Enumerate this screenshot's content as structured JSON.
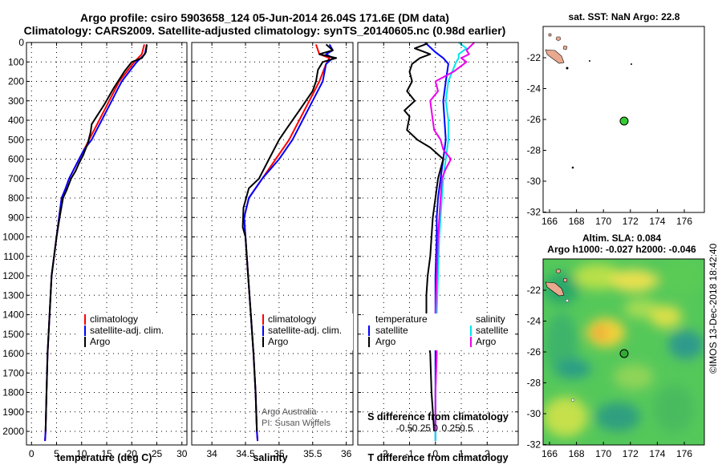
{
  "title_line1": "Argo profile: csiro 5903658_124 05-Jun-2014 26.04S 171.6E (DM data)",
  "title_line2": "Climatology: CARS2009. Satellite-adjusted climatology: synTS_20140605.nc (0.98d earlier)",
  "colors": {
    "climatology": "#ff0000",
    "satellite": "#0000ff",
    "argo": "#000000",
    "sat_salinity": "#00e5ee",
    "argo_salinity": "#ee00ee",
    "pos_marker": "#33cc33"
  },
  "chart_data": [
    {
      "type": "line",
      "xlabel": "temperature (deg C)",
      "xlim": [
        -1,
        31
      ],
      "xticks": [
        0,
        5,
        10,
        15,
        20,
        25,
        30
      ],
      "ylim": [
        2070,
        0
      ],
      "yticks": [
        0,
        100,
        200,
        300,
        400,
        500,
        600,
        700,
        800,
        900,
        1000,
        1100,
        1200,
        1300,
        1400,
        1500,
        1600,
        1700,
        1800,
        1900,
        2000
      ],
      "legend": {
        "climatology": "climatology",
        "satellite": "satellite-adj. clim.",
        "argo": "Argo"
      },
      "series": [
        {
          "name": "climatology",
          "color": "#ff0000",
          "points": [
            [
              22.5,
              10
            ],
            [
              22.0,
              60
            ],
            [
              20.5,
              100
            ],
            [
              19.0,
              150
            ],
            [
              17.5,
              200
            ],
            [
              16.5,
              250
            ],
            [
              15.5,
              300
            ],
            [
              14.5,
              350
            ],
            [
              13.5,
              400
            ],
            [
              12.5,
              450
            ],
            [
              11.5,
              500
            ],
            [
              10.5,
              550
            ],
            [
              9.5,
              600
            ],
            [
              8.5,
              650
            ],
            [
              7.5,
              700
            ],
            [
              6.8,
              750
            ],
            [
              6.0,
              800
            ],
            [
              5.5,
              900
            ],
            [
              5.0,
              1000
            ],
            [
              4.5,
              1100
            ],
            [
              4.0,
              1200
            ],
            [
              3.6,
              1400
            ],
            [
              3.2,
              1600
            ],
            [
              3.0,
              1800
            ],
            [
              2.8,
              2000
            ],
            [
              2.7,
              2050
            ]
          ]
        },
        {
          "name": "satellite",
          "color": "#0000ff",
          "points": [
            [
              23.0,
              10
            ],
            [
              22.6,
              60
            ],
            [
              21.0,
              100
            ],
            [
              19.5,
              150
            ],
            [
              18.0,
              200
            ],
            [
              17.0,
              250
            ],
            [
              16.0,
              300
            ],
            [
              15.0,
              350
            ],
            [
              14.0,
              400
            ],
            [
              13.0,
              450
            ],
            [
              12.0,
              500
            ],
            [
              10.5,
              550
            ],
            [
              9.5,
              600
            ],
            [
              8.5,
              650
            ],
            [
              7.5,
              700
            ],
            [
              6.8,
              750
            ],
            [
              6.0,
              800
            ],
            [
              5.5,
              900
            ],
            [
              5.0,
              1000
            ],
            [
              4.5,
              1100
            ],
            [
              4.0,
              1200
            ],
            [
              3.6,
              1400
            ],
            [
              3.2,
              1600
            ],
            [
              3.0,
              1800
            ],
            [
              2.8,
              2000
            ],
            [
              2.7,
              2050
            ]
          ]
        },
        {
          "name": "argo",
          "color": "#000000",
          "points": [
            [
              23.0,
              10
            ],
            [
              22.8,
              50
            ],
            [
              22.0,
              80
            ],
            [
              20.0,
              100
            ],
            [
              18.5,
              150
            ],
            [
              16.5,
              230
            ],
            [
              14.5,
              320
            ],
            [
              13.0,
              380
            ],
            [
              12.0,
              420
            ],
            [
              11.8,
              460
            ],
            [
              11.2,
              520
            ],
            [
              10.3,
              580
            ],
            [
              9.5,
              620
            ],
            [
              8.8,
              660
            ],
            [
              7.9,
              700
            ],
            [
              7.0,
              760
            ],
            [
              6.3,
              800
            ],
            [
              5.6,
              900
            ],
            [
              5.0,
              1000
            ],
            [
              4.5,
              1100
            ],
            [
              4.0,
              1200
            ],
            [
              3.6,
              1400
            ],
            [
              3.2,
              1600
            ],
            [
              3.0,
              1800
            ],
            [
              2.8,
              2000
            ]
          ]
        }
      ]
    },
    {
      "type": "line",
      "xlabel": "salinity",
      "xlim": [
        33.7,
        36.1
      ],
      "xticks": [
        34,
        34.5,
        35,
        35.5,
        36
      ],
      "xticklabels": [
        "34",
        "34.5",
        "35",
        "35.5",
        "36"
      ],
      "ylim": [
        2070,
        0
      ],
      "legend": {
        "climatology": "climatology",
        "satellite": "satellite-adj. clim.",
        "argo": "Argo"
      },
      "note_line1": "Argo Australia",
      "note_line2": "PI: Susan Wijffels",
      "series": [
        {
          "name": "climatology",
          "color": "#ff0000",
          "points": [
            [
              35.55,
              10
            ],
            [
              35.6,
              60
            ],
            [
              35.75,
              80
            ],
            [
              35.7,
              110
            ],
            [
              35.6,
              200
            ],
            [
              35.45,
              300
            ],
            [
              35.3,
              400
            ],
            [
              35.15,
              500
            ],
            [
              34.95,
              600
            ],
            [
              34.75,
              700
            ],
            [
              34.55,
              800
            ],
            [
              34.48,
              900
            ],
            [
              34.5,
              1000
            ],
            [
              34.54,
              1200
            ],
            [
              34.58,
              1400
            ],
            [
              34.62,
              1600
            ],
            [
              34.65,
              1800
            ],
            [
              34.67,
              2000
            ],
            [
              34.68,
              2050
            ]
          ]
        },
        {
          "name": "satellite",
          "color": "#0000ff",
          "points": [
            [
              35.75,
              10
            ],
            [
              35.8,
              40
            ],
            [
              35.7,
              60
            ],
            [
              35.8,
              80
            ],
            [
              35.7,
              110
            ],
            [
              35.65,
              200
            ],
            [
              35.5,
              300
            ],
            [
              35.35,
              400
            ],
            [
              35.2,
              500
            ],
            [
              35.0,
              600
            ],
            [
              34.75,
              700
            ],
            [
              34.55,
              800
            ],
            [
              34.48,
              900
            ],
            [
              34.5,
              1000
            ],
            [
              34.54,
              1200
            ],
            [
              34.58,
              1400
            ],
            [
              34.62,
              1600
            ],
            [
              34.65,
              1800
            ],
            [
              34.67,
              2000
            ],
            [
              34.68,
              2050
            ]
          ]
        },
        {
          "name": "argo",
          "color": "#000000",
          "points": [
            [
              35.7,
              10
            ],
            [
              35.8,
              40
            ],
            [
              35.6,
              60
            ],
            [
              35.85,
              80
            ],
            [
              35.65,
              100
            ],
            [
              35.58,
              140
            ],
            [
              35.55,
              200
            ],
            [
              35.5,
              250
            ],
            [
              35.3,
              350
            ],
            [
              35.1,
              450
            ],
            [
              35.0,
              500
            ],
            [
              34.85,
              600
            ],
            [
              34.7,
              700
            ],
            [
              34.55,
              750
            ],
            [
              34.47,
              850
            ],
            [
              34.46,
              950
            ],
            [
              34.5,
              1000
            ],
            [
              34.54,
              1200
            ],
            [
              34.58,
              1400
            ],
            [
              34.62,
              1600
            ],
            [
              34.65,
              1800
            ],
            [
              34.67,
              2000
            ]
          ]
        }
      ]
    },
    {
      "type": "line",
      "xlabel": "T difference from climatology",
      "sublabel": "S difference from climatology",
      "xlim": [
        -3,
        3.2
      ],
      "xticks": [
        -2,
        -1,
        0,
        1,
        2
      ],
      "sticks": [
        "-0.5",
        "-0.25",
        "0",
        "0.25",
        "0.5"
      ],
      "ylim": [
        2070,
        0
      ],
      "legend": {
        "temperature": "temperature",
        "salinity": "salinity",
        "satellite": "satellite",
        "argo": "Argo"
      },
      "series": [
        {
          "name": "T satellite",
          "color": "#0000ff",
          "points": [
            [
              -0.4,
              0
            ],
            [
              0.0,
              50
            ],
            [
              0.3,
              80
            ],
            [
              0.5,
              110
            ],
            [
              0.4,
              200
            ],
            [
              0.3,
              300
            ],
            [
              0.35,
              400
            ],
            [
              0.4,
              500
            ],
            [
              0.3,
              600
            ],
            [
              0.2,
              700
            ],
            [
              0.1,
              800
            ],
            [
              0.05,
              900
            ],
            [
              0.05,
              1000
            ],
            [
              0.0,
              1200
            ],
            [
              0.0,
              1400
            ],
            [
              0.0,
              1600
            ],
            [
              0.0,
              1800
            ],
            [
              0.0,
              2050
            ]
          ]
        },
        {
          "name": "T argo",
          "color": "#000000",
          "points": [
            [
              -0.3,
              5
            ],
            [
              -0.8,
              30
            ],
            [
              -0.2,
              60
            ],
            [
              -0.6,
              80
            ],
            [
              -0.9,
              110
            ],
            [
              -1.0,
              150
            ],
            [
              -0.9,
              200
            ],
            [
              -1.1,
              250
            ],
            [
              -0.8,
              300
            ],
            [
              -1.2,
              350
            ],
            [
              -1.0,
              380
            ],
            [
              -1.1,
              450
            ],
            [
              -0.7,
              500
            ],
            [
              -0.2,
              540
            ],
            [
              0.3,
              600
            ],
            [
              0.2,
              650
            ],
            [
              0.1,
              700
            ],
            [
              0.0,
              800
            ],
            [
              -0.1,
              900
            ],
            [
              -0.15,
              1000
            ],
            [
              -0.2,
              1100
            ],
            [
              -0.3,
              1200
            ],
            [
              -0.35,
              1300
            ],
            [
              -0.35,
              1400
            ],
            [
              -0.3,
              1500
            ],
            [
              -0.2,
              1600
            ],
            [
              -0.15,
              1800
            ],
            [
              -0.05,
              2000
            ]
          ]
        },
        {
          "name": "S satellite",
          "color": "#00e5ee",
          "points": [
            [
              0.9,
              0
            ],
            [
              1.2,
              30
            ],
            [
              0.9,
              60
            ],
            [
              0.9,
              80
            ],
            [
              0.8,
              100
            ],
            [
              0.5,
              200
            ],
            [
              0.4,
              300
            ],
            [
              0.5,
              400
            ],
            [
              0.5,
              500
            ],
            [
              0.4,
              600
            ],
            [
              0.3,
              700
            ],
            [
              0.25,
              800
            ],
            [
              0.2,
              900
            ],
            [
              0.15,
              1000
            ],
            [
              0.1,
              1200
            ],
            [
              0.05,
              1400
            ],
            [
              0.05,
              1600
            ],
            [
              0.0,
              1800
            ],
            [
              0.0,
              2050
            ]
          ]
        },
        {
          "name": "S argo",
          "color": "#ee00ee",
          "points": [
            [
              1.5,
              0
            ],
            [
              1.2,
              40
            ],
            [
              1.3,
              60
            ],
            [
              1.0,
              80
            ],
            [
              1.2,
              100
            ],
            [
              0.7,
              150
            ],
            [
              0.0,
              200
            ],
            [
              0.1,
              250
            ],
            [
              -0.2,
              300
            ],
            [
              -0.1,
              400
            ],
            [
              -0.05,
              450
            ],
            [
              0.2,
              500
            ],
            [
              0.3,
              550
            ],
            [
              0.6,
              600
            ],
            [
              0.4,
              650
            ],
            [
              0.25,
              700
            ],
            [
              0.2,
              800
            ],
            [
              0.15,
              900
            ],
            [
              0.1,
              1000
            ],
            [
              0.05,
              1200
            ],
            [
              0.0,
              1400
            ],
            [
              0.05,
              1600
            ],
            [
              0.0,
              1800
            ],
            [
              0.0,
              2000
            ]
          ]
        }
      ]
    }
  ],
  "map_sst": {
    "title": "sat. SST: NaN Argo: 22.8",
    "xticks": [
      "166",
      "168",
      "170",
      "172",
      "174",
      "176"
    ],
    "yticks": [
      "-22",
      "-24",
      "-26",
      "-28",
      "-30",
      "-32"
    ],
    "position": [
      171.6,
      -26.04
    ]
  },
  "map_sla": {
    "title1": "Altim. SLA: 0.084",
    "title2": "Argo h1000: -0.027 h2000: -0.046",
    "xticks": [
      "166",
      "168",
      "170",
      "172",
      "174",
      "176"
    ],
    "yticks": [
      "-22",
      "-24",
      "-26",
      "-28",
      "-30",
      "-32"
    ],
    "position": [
      171.6,
      -26.04
    ]
  },
  "footer": "©IMOS 13-Dec-2018 18:42:40"
}
